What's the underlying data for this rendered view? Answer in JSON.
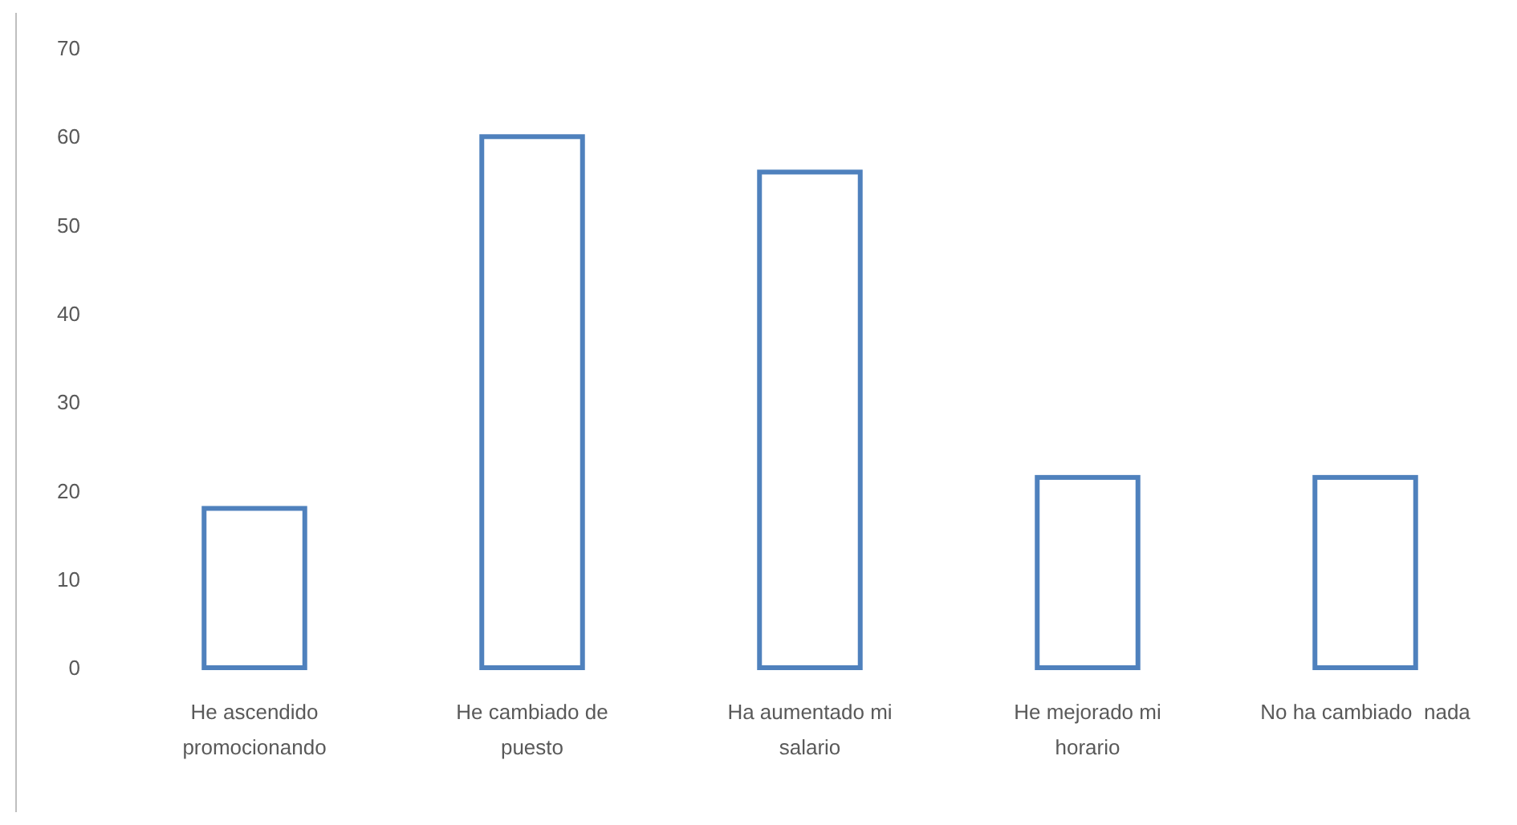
{
  "chart_data": {
    "type": "bar",
    "categories": [
      "He ascendido promocionando",
      "He cambiado de puesto",
      "Ha aumentado mi salario",
      "He mejorado mi horario",
      "No ha cambiado  nada"
    ],
    "values": [
      18,
      60,
      56,
      21.5,
      21.5
    ],
    "color": "#4f81bd",
    "ylim": [
      0,
      70
    ],
    "yticks": [
      0,
      10,
      20,
      30,
      40,
      50,
      60,
      70
    ],
    "grid": false
  }
}
